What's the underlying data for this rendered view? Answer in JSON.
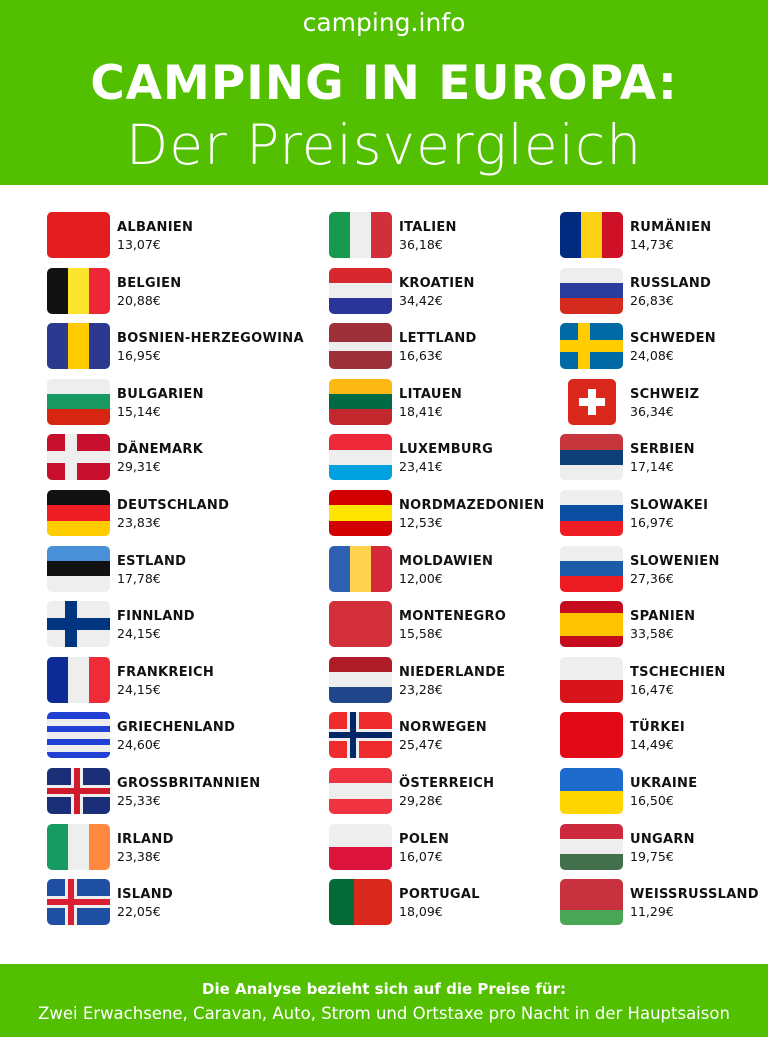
{
  "header": {
    "brand": "camping.info",
    "title_line1": "CAMPING IN EUROPA:",
    "title_line2": "Der Preisvergleich"
  },
  "columns": [
    [
      {
        "name": "ALBANIEN",
        "price": "13,07€",
        "flag": {
          "type": "h",
          "colors": [
            "#e41e20"
          ]
        }
      },
      {
        "name": "BELGIEN",
        "price": "20,88€",
        "flag": {
          "type": "v",
          "colors": [
            "#111111",
            "#fde42f",
            "#ee2737"
          ]
        }
      },
      {
        "name": "BOSNIEN-HERZEGOWINA",
        "price": "16,95€",
        "flag": {
          "type": "v",
          "colors": [
            "#2b3a8f",
            "#fecb00",
            "#2b3a8f"
          ]
        }
      },
      {
        "name": "BULGARIEN",
        "price": "15,14€",
        "flag": {
          "type": "h",
          "colors": [
            "#eeeeee",
            "#1a9a63",
            "#d62612"
          ]
        }
      },
      {
        "name": "DÄNEMARK",
        "price": "29,31€",
        "flag": {
          "type": "cross",
          "colors": [
            "#c8102e",
            "#eeeeee"
          ]
        }
      },
      {
        "name": "DEUTSCHLAND",
        "price": "23,83€",
        "flag": {
          "type": "h",
          "colors": [
            "#111111",
            "#ee1c25",
            "#ffcc00"
          ]
        }
      },
      {
        "name": "ESTLAND",
        "price": "17,78€",
        "flag": {
          "type": "h",
          "colors": [
            "#4891d9",
            "#111111",
            "#eeeeee"
          ]
        }
      },
      {
        "name": "FINNLAND",
        "price": "24,15€",
        "flag": {
          "type": "cross",
          "colors": [
            "#eeeeee",
            "#003580"
          ]
        }
      },
      {
        "name": "FRANKREICH",
        "price": "24,15€",
        "flag": {
          "type": "v",
          "colors": [
            "#0d2b94",
            "#eeeeee",
            "#ef2b37"
          ]
        }
      },
      {
        "name": "GRIECHENLAND",
        "price": "24,60€",
        "flag": {
          "type": "h",
          "colors": [
            "#2140d4",
            "#eeeeee",
            "#2140d4",
            "#eeeeee",
            "#2140d4",
            "#eeeeee",
            "#2140d4"
          ]
        }
      },
      {
        "name": "GROSSBRITANNIEN",
        "price": "25,33€",
        "flag": {
          "type": "centercross",
          "colors": [
            "#1a2f78",
            "#eeeeee",
            "#cf1b2b"
          ]
        }
      },
      {
        "name": "IRLAND",
        "price": "23,38€",
        "flag": {
          "type": "v",
          "colors": [
            "#169b62",
            "#eeeeee",
            "#ff883e"
          ]
        }
      },
      {
        "name": "ISLAND",
        "price": "22,05€",
        "flag": {
          "type": "cross",
          "colors": [
            "#1e4fa3",
            "#eeeeee",
            "#dc1e35"
          ]
        }
      }
    ],
    [
      {
        "name": "ITALIEN",
        "price": "36,18€",
        "flag": {
          "type": "v",
          "colors": [
            "#169b4c",
            "#eeeeee",
            "#d32f3a"
          ]
        }
      },
      {
        "name": "KROATIEN",
        "price": "34,42€",
        "flag": {
          "type": "h",
          "colors": [
            "#d8282f",
            "#eeeeee",
            "#2a3499"
          ]
        }
      },
      {
        "name": "LETTLAND",
        "price": "16,63€",
        "flag": {
          "type": "h",
          "colors": [
            "#9e3039",
            "#9e3039",
            "#eeeeee",
            "#9e3039",
            "#9e3039"
          ]
        }
      },
      {
        "name": "LITAUEN",
        "price": "18,41€",
        "flag": {
          "type": "h",
          "colors": [
            "#fdb913",
            "#006a44",
            "#c1272d"
          ]
        }
      },
      {
        "name": "LUXEMBURG",
        "price": "23,41€",
        "flag": {
          "type": "h",
          "colors": [
            "#ed2939",
            "#eeeeee",
            "#00a1de"
          ]
        }
      },
      {
        "name": "NORDMAZEDONIEN",
        "price": "12,53€",
        "flag": {
          "type": "h",
          "colors": [
            "#d20000",
            "#ffe600",
            "#d20000"
          ]
        }
      },
      {
        "name": "MOLDAWIEN",
        "price": "12,00€",
        "flag": {
          "type": "v",
          "colors": [
            "#2f5fb3",
            "#ffd34d",
            "#d8283b"
          ]
        }
      },
      {
        "name": "MONTENEGRO",
        "price": "15,58€",
        "flag": {
          "type": "h",
          "colors": [
            "#d3303c"
          ]
        }
      },
      {
        "name": "NIEDERLANDE",
        "price": "23,28€",
        "flag": {
          "type": "h",
          "colors": [
            "#ae1c28",
            "#eeeeee",
            "#21468b"
          ]
        }
      },
      {
        "name": "NORWEGEN",
        "price": "25,47€",
        "flag": {
          "type": "cross",
          "colors": [
            "#ef2b2d",
            "#eeeeee",
            "#002868"
          ]
        }
      },
      {
        "name": "ÖSTERREICH",
        "price": "29,28€",
        "flag": {
          "type": "h",
          "colors": [
            "#ef3340",
            "#eeeeee",
            "#ef3340"
          ]
        }
      },
      {
        "name": "POLEN",
        "price": "16,07€",
        "flag": {
          "type": "h",
          "colors": [
            "#eeeeee",
            "#dc143c"
          ]
        }
      },
      {
        "name": "PORTUGAL",
        "price": "18,09€",
        "flag": {
          "type": "v2",
          "colors": [
            "#046a38",
            "#da291c"
          ]
        }
      }
    ],
    [
      {
        "name": "RUMÄNIEN",
        "price": "14,73€",
        "flag": {
          "type": "v",
          "colors": [
            "#002b7f",
            "#fcd116",
            "#ce1126"
          ]
        }
      },
      {
        "name": "RUSSLAND",
        "price": "26,83€",
        "flag": {
          "type": "h",
          "colors": [
            "#eeeeee",
            "#2a3d9c",
            "#d52b1e"
          ]
        }
      },
      {
        "name": "SCHWEDEN",
        "price": "24,08€",
        "flag": {
          "type": "cross",
          "colors": [
            "#006aa7",
            "#fecc00"
          ]
        }
      },
      {
        "name": "SCHWEIZ",
        "price": "36,34€",
        "flag": {
          "type": "swiss",
          "colors": [
            "#da291c",
            "#ffffff"
          ]
        }
      },
      {
        "name": "SERBIEN",
        "price": "17,14€",
        "flag": {
          "type": "h",
          "colors": [
            "#c6363c",
            "#0c4076",
            "#eeeeee"
          ]
        }
      },
      {
        "name": "SLOWAKEI",
        "price": "16,97€",
        "flag": {
          "type": "h",
          "colors": [
            "#eeeeee",
            "#0b4ea2",
            "#ee1c25"
          ]
        }
      },
      {
        "name": "SLOWENIEN",
        "price": "27,36€",
        "flag": {
          "type": "h",
          "colors": [
            "#eeeeee",
            "#1c5ba8",
            "#ed1c24"
          ]
        }
      },
      {
        "name": "SPANIEN",
        "price": "33,58€",
        "flag": {
          "type": "h",
          "colors": [
            "#c60b1e",
            "#ffc400",
            "#ffc400",
            "#c60b1e"
          ]
        }
      },
      {
        "name": "TSCHECHIEN",
        "price": "16,47€",
        "flag": {
          "type": "h",
          "colors": [
            "#eeeeee",
            "#d7141a"
          ]
        }
      },
      {
        "name": "TÜRKEI",
        "price": "14,49€",
        "flag": {
          "type": "h",
          "colors": [
            "#e30a17"
          ]
        }
      },
      {
        "name": "UKRAINE",
        "price": "16,50€",
        "flag": {
          "type": "h",
          "colors": [
            "#1f6bcc",
            "#ffd500"
          ]
        }
      },
      {
        "name": "UNGARN",
        "price": "19,75€",
        "flag": {
          "type": "h",
          "colors": [
            "#cd2a3e",
            "#eeeeee",
            "#436f4d"
          ]
        }
      },
      {
        "name": "WEISSRUSSLAND",
        "price": "11,29€",
        "flag": {
          "type": "h",
          "colors": [
            "#c8313e",
            "#c8313e",
            "#4aa657"
          ]
        }
      }
    ]
  ],
  "footer": {
    "line1": "Die Analyse bezieht sich auf die Preise für:",
    "line2": "Zwei Erwachsene, Caravan, Auto, Strom und Ortstaxe pro Nacht in der Hauptsaison"
  },
  "colors": {
    "brand_green": "#52c000"
  }
}
